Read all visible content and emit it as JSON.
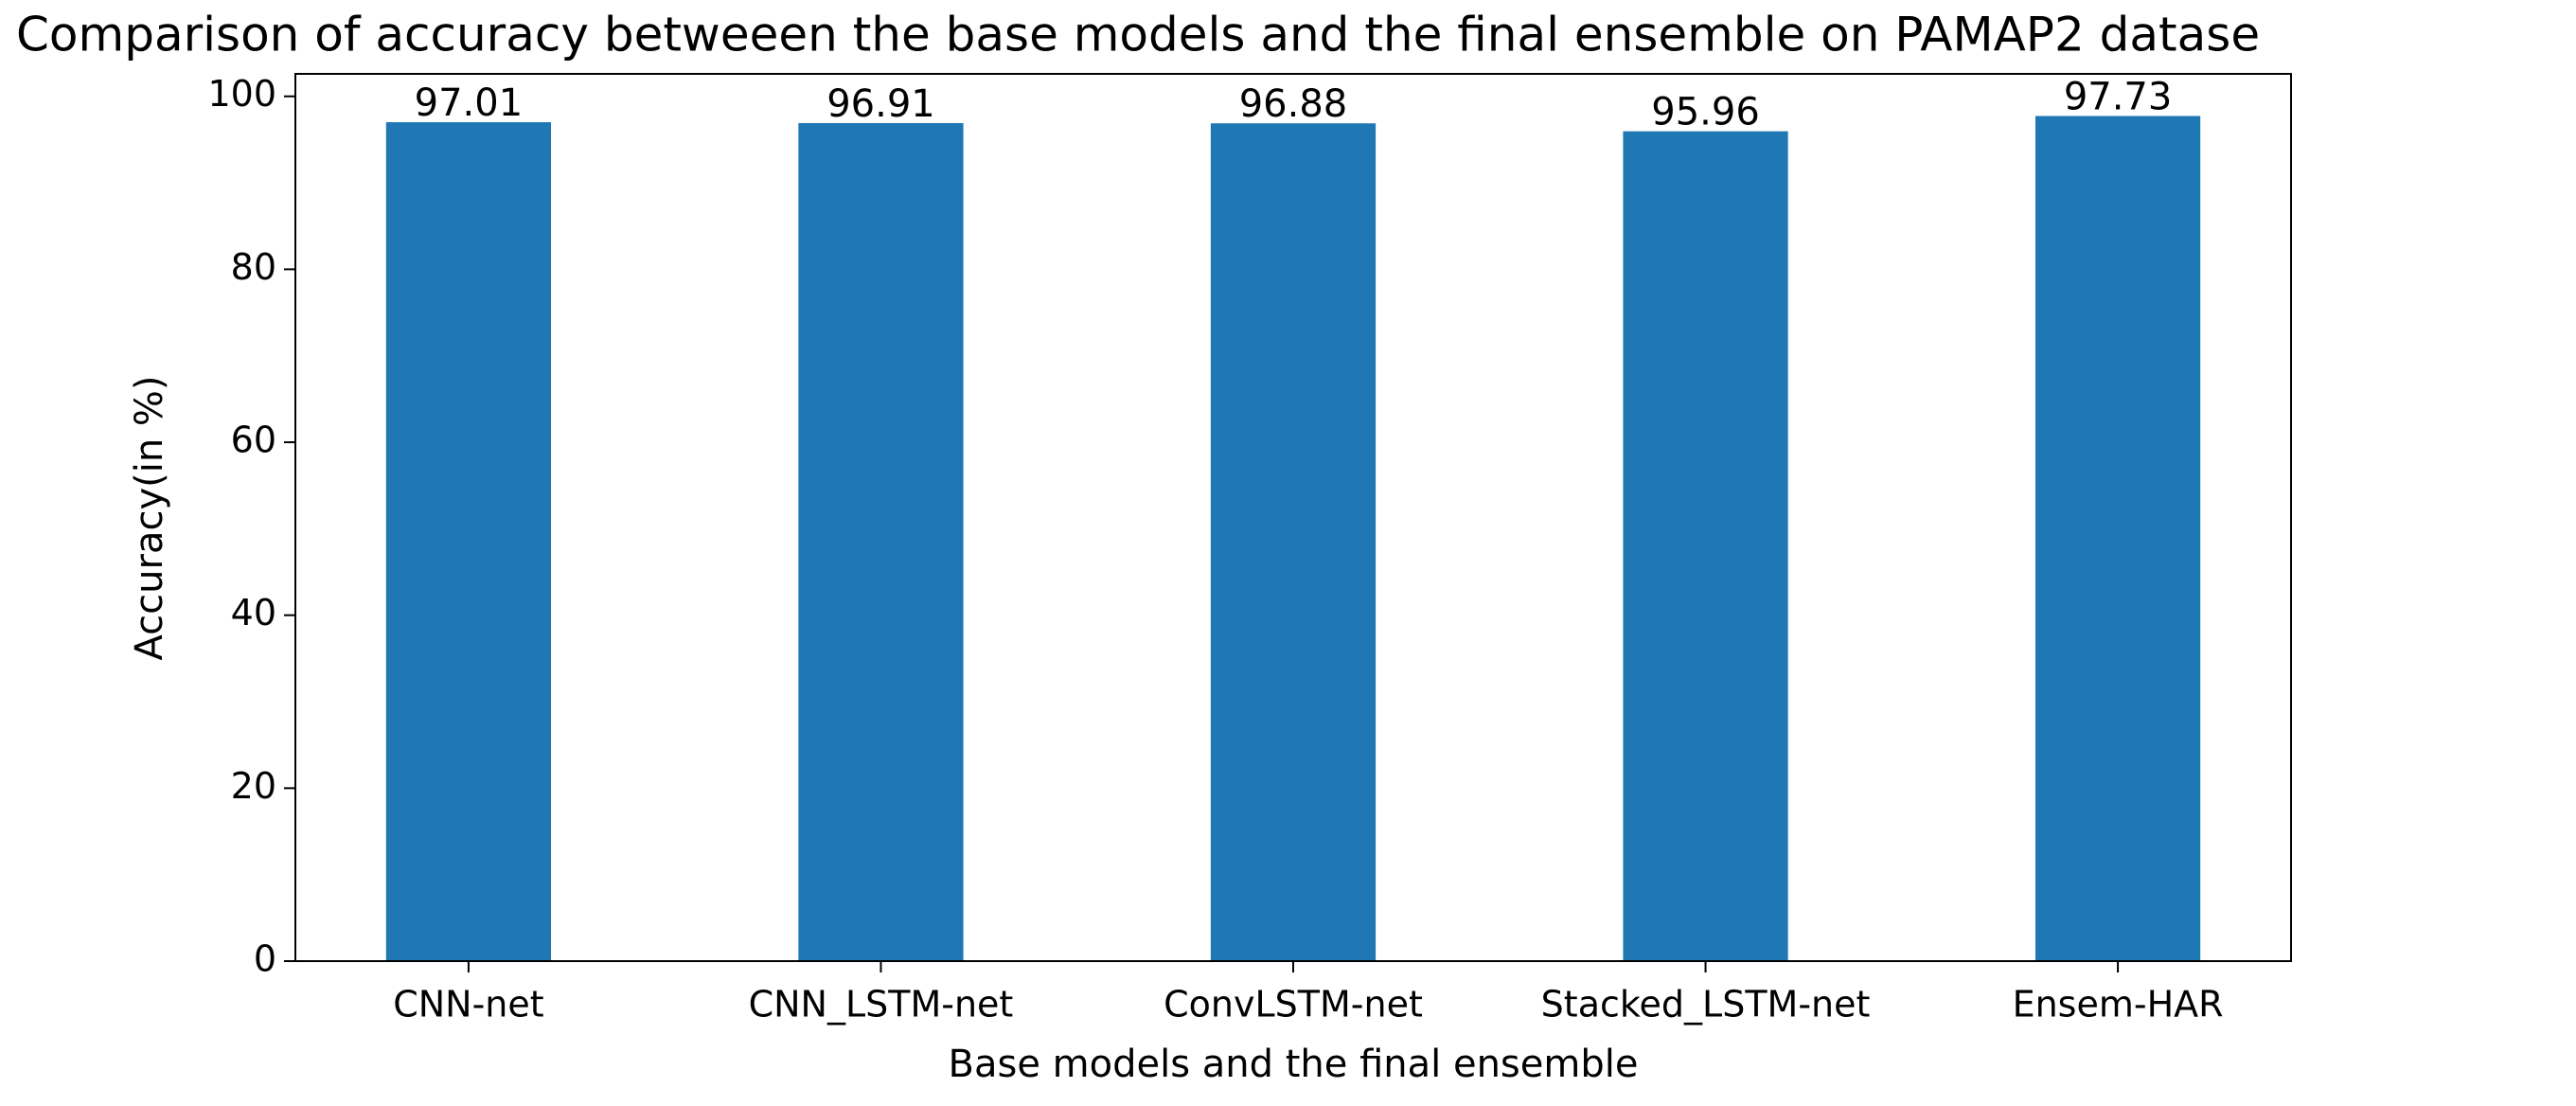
{
  "chart_data": {
    "type": "bar",
    "title": "Comparison of accuracy betweeen the base models and the final ensemble on PAMAP2 datase",
    "x_label": "Base models and the final ensemble",
    "y_label": "Accuracy(in %)",
    "categories": [
      "CNN-net",
      "CNN_LSTM-net",
      "ConvLSTM-net",
      "Stacked_LSTM-net",
      "Ensem-HAR"
    ],
    "values": [
      97.01,
      96.91,
      96.88,
      95.96,
      97.73
    ],
    "color": "#1f77b4",
    "ylim": [
      0,
      102.6
    ],
    "yticks": [
      0,
      20,
      40,
      60,
      80,
      100
    ],
    "grid": false
  }
}
